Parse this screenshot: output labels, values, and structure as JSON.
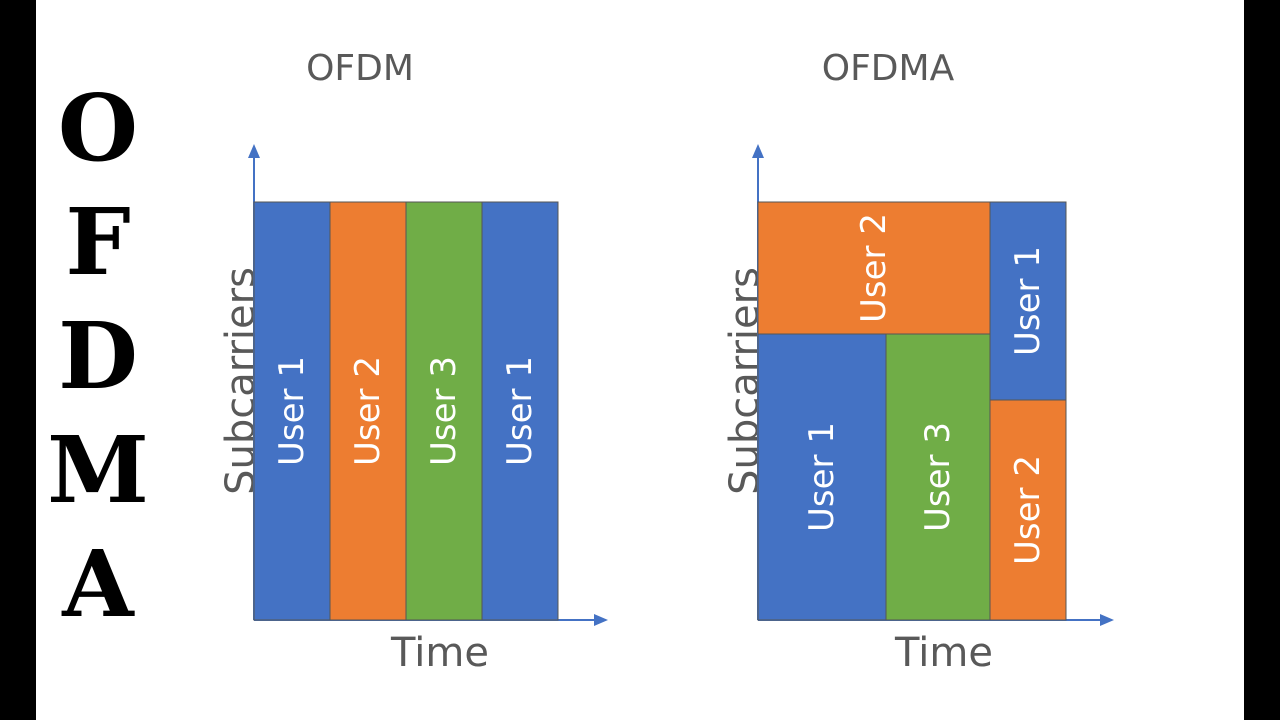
{
  "side_title": [
    "O",
    "F",
    "D",
    "M",
    "A"
  ],
  "panels": [
    {
      "title": "OFDM",
      "xlabel": "Time",
      "ylabel": "Subcarriers",
      "blocks": [
        {
          "label": "User 1",
          "color": "#4472C4"
        },
        {
          "label": "User 2",
          "color": "#ED7D31"
        },
        {
          "label": "User 3",
          "color": "#70AD47"
        },
        {
          "label": "User 1",
          "color": "#4472C4"
        }
      ]
    },
    {
      "title": "OFDMA",
      "xlabel": "Time",
      "ylabel": "Subcarriers",
      "blocks": [
        {
          "label": "User 2",
          "color": "#ED7D31"
        },
        {
          "label": "User 1",
          "color": "#4472C4"
        },
        {
          "label": "User 1",
          "color": "#4472C4"
        },
        {
          "label": "User 3",
          "color": "#70AD47"
        },
        {
          "label": "User 2",
          "color": "#ED7D31"
        }
      ]
    }
  ],
  "colors": {
    "axis": "#4472C4",
    "text": "#595959",
    "block_text": "#FFFFFF"
  }
}
